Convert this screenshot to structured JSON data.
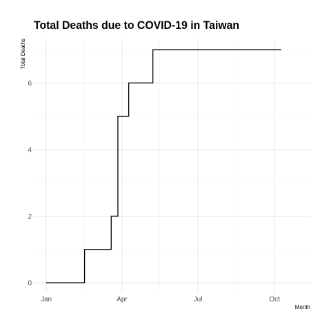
{
  "chart_data": {
    "type": "line",
    "title": "Total Deaths due to COVID-19 in Taiwan",
    "xlabel": "Month",
    "ylabel": "Total Deaths",
    "x_ticks": [
      "Jan",
      "Apr",
      "Jul",
      "Oct"
    ],
    "y_ticks": [
      "0",
      "2",
      "4",
      "6"
    ],
    "xlim": [
      "2020-01-01",
      "2020-10-29"
    ],
    "ylim": [
      -0.3,
      7.3
    ],
    "grid": true,
    "series": [
      {
        "color": "#000000",
        "step": "post",
        "points": [
          {
            "x": "2020-01-01",
            "y": 0
          },
          {
            "x": "2020-02-16",
            "y": 1
          },
          {
            "x": "2020-03-19",
            "y": 2
          },
          {
            "x": "2020-03-27",
            "y": 5
          },
          {
            "x": "2020-04-09",
            "y": 6
          },
          {
            "x": "2020-05-08",
            "y": 7
          },
          {
            "x": "2020-10-09",
            "y": 7
          }
        ]
      }
    ]
  }
}
